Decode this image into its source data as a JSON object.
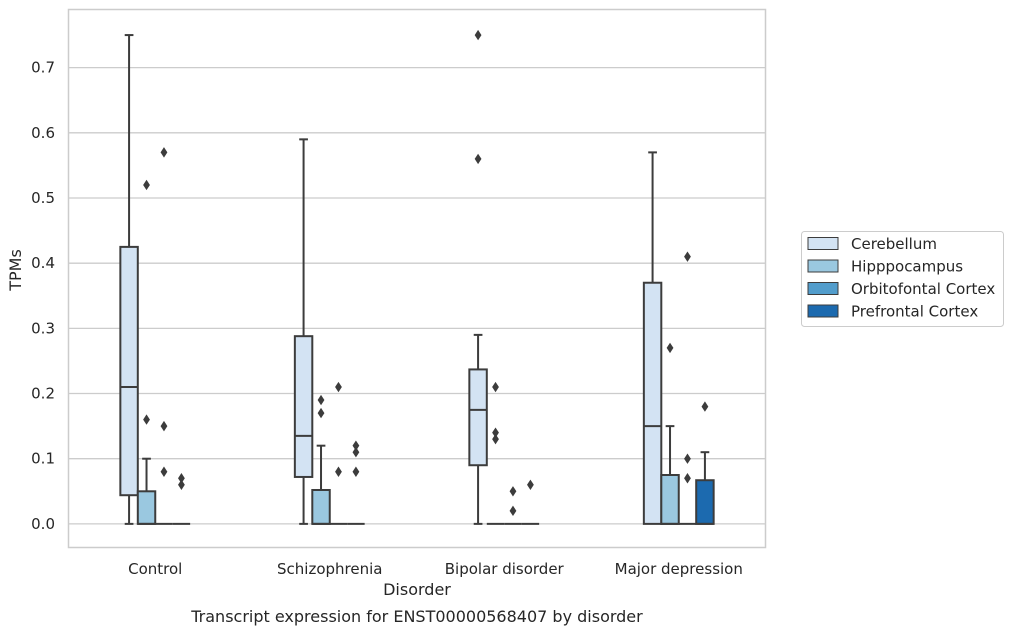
{
  "chart_data": {
    "type": "boxplot",
    "title": "Transcript expression for ENST00000568407 by disorder",
    "xlabel": "Disorder",
    "ylabel": "TPMs",
    "ylim": [
      -0.037,
      0.79
    ],
    "yticks": [
      "0.0",
      "0.1",
      "0.2",
      "0.3",
      "0.4",
      "0.5",
      "0.6",
      "0.7"
    ],
    "grid": "horizontal",
    "legend_position": "right",
    "categories": [
      "Control",
      "Schizophrenia",
      "Bipolar disorder",
      "Major depression"
    ],
    "series": [
      {
        "name": "Cerebellum",
        "color": "#d3e3f3",
        "boxes": [
          {
            "q1": 0.044,
            "median": 0.21,
            "q3": 0.425,
            "whisker_low": 0.0,
            "whisker_high": 0.75,
            "outliers": []
          },
          {
            "q1": 0.072,
            "median": 0.135,
            "q3": 0.288,
            "whisker_low": 0.0,
            "whisker_high": 0.59,
            "outliers": []
          },
          {
            "q1": 0.09,
            "median": 0.175,
            "q3": 0.237,
            "whisker_low": 0.0,
            "whisker_high": 0.29,
            "outliers": [
              0.56,
              0.75
            ]
          },
          {
            "q1": 0.0,
            "median": 0.15,
            "q3": 0.37,
            "whisker_low": 0.0,
            "whisker_high": 0.57,
            "outliers": []
          }
        ]
      },
      {
        "name": "Hipppocampus",
        "color": "#9ac8e0",
        "boxes": [
          {
            "q1": 0.0,
            "median": 0.0,
            "q3": 0.05,
            "whisker_low": 0.0,
            "whisker_high": 0.1,
            "outliers": [
              0.16,
              0.52
            ]
          },
          {
            "q1": 0.0,
            "median": 0.0,
            "q3": 0.052,
            "whisker_low": 0.0,
            "whisker_high": 0.12,
            "outliers": [
              0.17,
              0.19
            ]
          },
          {
            "q1": 0.0,
            "median": 0.0,
            "q3": 0.0,
            "whisker_low": 0.0,
            "whisker_high": 0.0,
            "outliers": [
              0.13,
              0.14,
              0.21
            ]
          },
          {
            "q1": 0.0,
            "median": 0.0,
            "q3": 0.075,
            "whisker_low": 0.0,
            "whisker_high": 0.15,
            "outliers": [
              0.27
            ]
          }
        ]
      },
      {
        "name": "Orbitofontal Cortex",
        "color": "#529dcc",
        "boxes": [
          {
            "q1": 0.0,
            "median": 0.0,
            "q3": 0.0,
            "whisker_low": 0.0,
            "whisker_high": 0.0,
            "outliers": [
              0.08,
              0.15,
              0.57
            ]
          },
          {
            "q1": 0.0,
            "median": 0.0,
            "q3": 0.0,
            "whisker_low": 0.0,
            "whisker_high": 0.0,
            "outliers": [
              0.08,
              0.21
            ]
          },
          {
            "q1": 0.0,
            "median": 0.0,
            "q3": 0.0,
            "whisker_low": 0.0,
            "whisker_high": 0.0,
            "outliers": [
              0.02,
              0.05
            ]
          },
          {
            "q1": 0.0,
            "median": 0.0,
            "q3": 0.0,
            "whisker_low": 0.0,
            "whisker_high": 0.0,
            "outliers": [
              0.07,
              0.1,
              0.41
            ]
          }
        ]
      },
      {
        "name": "Prefrontal Cortex",
        "color": "#1c6aaf",
        "boxes": [
          {
            "q1": 0.0,
            "median": 0.0,
            "q3": 0.0,
            "whisker_low": 0.0,
            "whisker_high": 0.0,
            "outliers": [
              0.06,
              0.07
            ]
          },
          {
            "q1": 0.0,
            "median": 0.0,
            "q3": 0.0,
            "whisker_low": 0.0,
            "whisker_high": 0.0,
            "outliers": [
              0.08,
              0.11,
              0.12
            ]
          },
          {
            "q1": 0.0,
            "median": 0.0,
            "q3": 0.0,
            "whisker_low": 0.0,
            "whisker_high": 0.0,
            "outliers": [
              0.06
            ]
          },
          {
            "q1": 0.0,
            "median": 0.0,
            "q3": 0.067,
            "whisker_low": 0.0,
            "whisker_high": 0.11,
            "outliers": [
              0.18
            ]
          }
        ]
      }
    ]
  }
}
